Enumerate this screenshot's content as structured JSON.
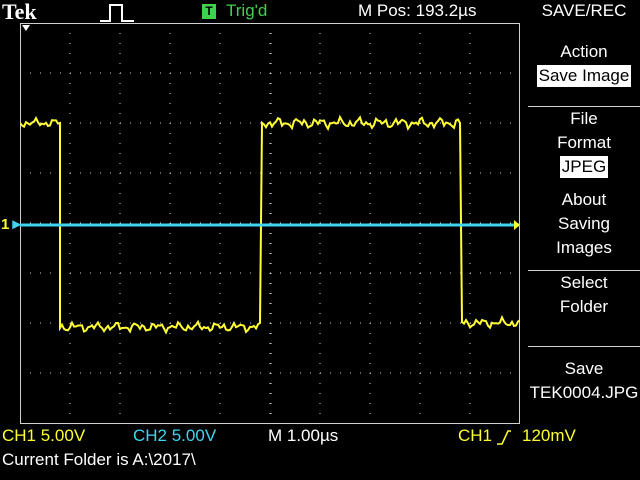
{
  "header": {
    "brand": "Tek",
    "trigger_badge": "T",
    "trigger_status": "Trig'd",
    "m_pos": "M Pos: 193.2µs",
    "menu_title": "SAVE/REC"
  },
  "menu": [
    {
      "lines": [
        "Action"
      ],
      "selected": "Save Image"
    },
    {
      "lines": [
        "File",
        "Format"
      ],
      "selected": "JPEG"
    },
    {
      "lines": [
        "About",
        "Saving",
        "Images"
      ]
    },
    {
      "lines": [
        "Select",
        "Folder"
      ]
    },
    {
      "lines": [
        "Save",
        "TEK0004.JPG"
      ]
    }
  ],
  "status": {
    "ch1_scale": "CH1  5.00V",
    "ch2_scale": "CH2  5.00V",
    "timebase": "M 1.00µs",
    "trigger_source": "CH1",
    "trigger_level": "120mV"
  },
  "footer": {
    "current_folder": "Current Folder is A:\\2017\\"
  },
  "colors": {
    "ch1": "#ffff33",
    "ch2": "#3fd5f0",
    "trigger": "#3fd24a",
    "graticule": "#d0d0d0"
  },
  "channel_marker": "1"
}
